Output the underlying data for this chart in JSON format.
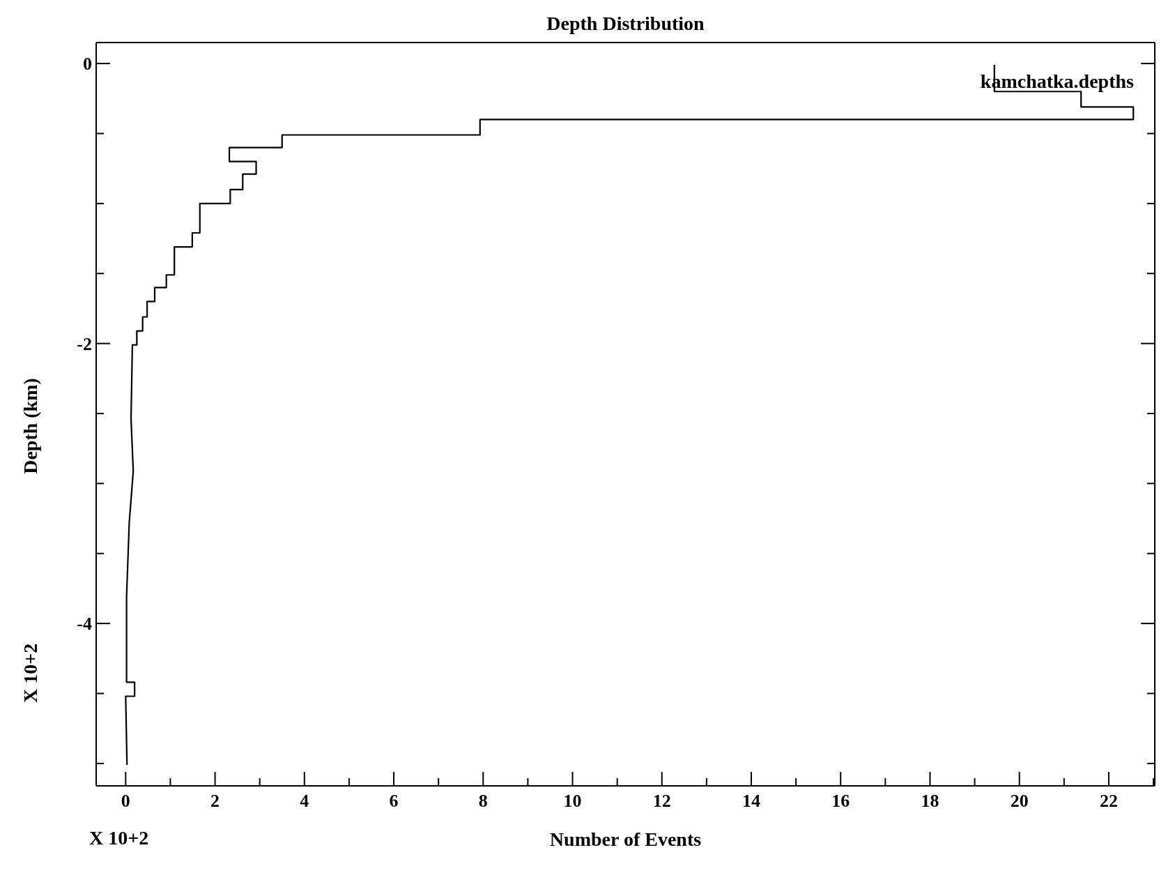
{
  "chart_data": {
    "type": "line",
    "title": "Depth Distribution",
    "xlabel": "Number of Events",
    "ylabel": "Depth (km)",
    "marker": "none",
    "annotations": [
      "kamchatka.depths",
      "X 10+2",
      "X 10+2"
    ],
    "xlim": [
      -0.66,
      23.03
    ],
    "ylim": [
      -5.16,
      0.15
    ],
    "xticks": [
      0,
      {
        "value": 1,
        "label": null
      },
      2,
      {
        "value": 3,
        "label": null
      },
      4,
      {
        "value": 5,
        "label": null
      },
      6,
      {
        "value": 7,
        "label": null
      },
      8,
      {
        "value": 9,
        "label": null
      },
      10,
      {
        "value": 11,
        "label": null
      },
      12,
      {
        "value": 13,
        "label": null
      },
      14,
      {
        "value": 15,
        "label": null
      },
      16,
      {
        "value": 17,
        "label": null
      },
      18,
      {
        "value": 19,
        "label": null
      },
      20,
      {
        "value": 21,
        "label": null
      },
      22,
      {
        "value": 23,
        "label": null
      }
    ],
    "yticks": [
      0,
      {
        "value": -0.5,
        "label": null
      },
      {
        "value": -1,
        "label": null
      },
      {
        "value": -1.5,
        "label": null
      },
      -2,
      {
        "value": -2.5,
        "label": null
      },
      {
        "value": -3,
        "label": null
      },
      {
        "value": -3.5,
        "label": null
      },
      -4,
      {
        "value": -4.5,
        "label": null
      },
      {
        "value": -5,
        "label": null
      }
    ],
    "series": [
      {
        "color": "#000000",
        "x": [
          19.44,
          19.44,
          21.38,
          21.38,
          22.55,
          22.55,
          7.93,
          7.93,
          3.5,
          3.5,
          2.32,
          2.32,
          2.92,
          2.92,
          2.62,
          2.62,
          2.34,
          2.34,
          1.66,
          1.66,
          1.49,
          1.49,
          1.09,
          1.09,
          0.91,
          0.91,
          0.65,
          0.65,
          0.48,
          0.48,
          0.38,
          0.38,
          0.25,
          0.25,
          0.15,
          0.12,
          0.17,
          0.08,
          0.02,
          0.02,
          0.2,
          0.2,
          0,
          0.03
        ],
        "values": [
          -0.01,
          -0.2,
          -0.2,
          -0.31,
          -0.31,
          -0.4,
          -0.4,
          -0.51,
          -0.51,
          -0.6,
          -0.6,
          -0.7,
          -0.7,
          -0.79,
          -0.79,
          -0.9,
          -0.9,
          -1,
          -1,
          -1.21,
          -1.21,
          -1.31,
          -1.31,
          -1.51,
          -1.51,
          -1.6,
          -1.6,
          -1.7,
          -1.7,
          -1.81,
          -1.81,
          -1.91,
          -1.91,
          -2.01,
          -2.01,
          -2.54,
          -2.91,
          -3.28,
          -3.81,
          -4.42,
          -4.42,
          -4.52,
          -4.52,
          -5.01
        ]
      }
    ]
  }
}
